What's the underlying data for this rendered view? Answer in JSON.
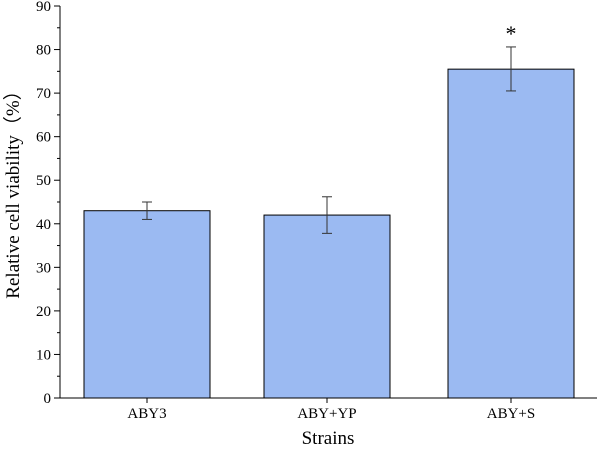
{
  "chart_data": {
    "type": "bar",
    "categories": [
      "ABY3",
      "ABY+YP",
      "ABY+S"
    ],
    "values": [
      43.0,
      42.0,
      75.5
    ],
    "error_low": [
      41.0,
      37.8,
      70.5
    ],
    "error_high": [
      45.0,
      46.2,
      80.6
    ],
    "annotations": [
      "",
      "",
      "*"
    ],
    "xlabel": "Strains",
    "ylabel": "Relative cell viability（%）",
    "ylim": [
      0,
      90
    ],
    "yticks": [
      "0",
      "10",
      "20",
      "30",
      "40",
      "50",
      "60",
      "70",
      "80",
      "90"
    ],
    "grid": false,
    "bar_color": "#9bbaf2",
    "bar_edge_color": "#000000"
  }
}
